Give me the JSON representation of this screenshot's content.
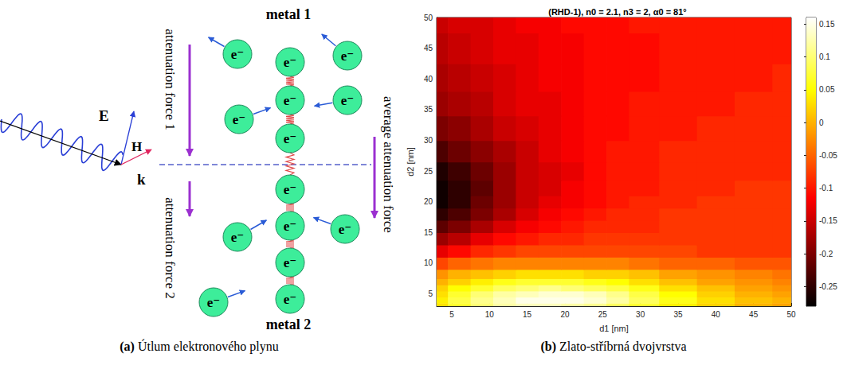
{
  "diagram": {
    "top_label": "metal 1",
    "bottom_label": "metal 2",
    "left_upper_label": "attenuation force 1",
    "left_lower_label": "attenuation force 2",
    "right_label": "average attenuation force",
    "vectors": {
      "E": "E",
      "H": "H",
      "k": "k"
    },
    "electron_label": "e⁻"
  },
  "captions": [
    {
      "label": "(a)",
      "text": "Útlum elektronového plynu"
    },
    {
      "label": "(b)",
      "text": "Zlato-stříbrná dvojvrstva"
    }
  ],
  "chart_data": {
    "type": "heatmap",
    "title": "(RHD-1), n0 = 2.1, n3 = 2, α0 = 81°",
    "x_label": "d1 [nm]",
    "y_label": "d2 [nm]",
    "xlim": [
      3,
      50
    ],
    "ylim": [
      3,
      50
    ],
    "xticks": [
      5,
      10,
      15,
      20,
      25,
      30,
      35,
      40,
      45,
      50
    ],
    "yticks": [
      5,
      10,
      15,
      20,
      25,
      30,
      35,
      40,
      45,
      50
    ],
    "grid": false,
    "x": [
      3,
      6,
      9,
      12,
      15,
      18,
      21,
      24,
      27,
      30,
      35,
      40,
      45,
      50
    ],
    "y": [
      3,
      4,
      5,
      6,
      7,
      8,
      10,
      12,
      14,
      16,
      18,
      20,
      22,
      25,
      28,
      32,
      36,
      40,
      45,
      50
    ],
    "values": [
      [
        0.03,
        0.07,
        0.1,
        0.12,
        0.13,
        0.13,
        0.12,
        0.11,
        0.09,
        0.07,
        0.04,
        0.02,
        0.0,
        -0.01
      ],
      [
        0.04,
        0.08,
        0.11,
        0.13,
        0.15,
        0.15,
        0.15,
        0.14,
        0.12,
        0.09,
        0.06,
        0.03,
        0.01,
        0.0
      ],
      [
        0.03,
        0.07,
        0.1,
        0.12,
        0.13,
        0.14,
        0.14,
        0.13,
        0.11,
        0.08,
        0.05,
        0.02,
        0.0,
        -0.01
      ],
      [
        0.02,
        0.05,
        0.07,
        0.09,
        0.1,
        0.11,
        0.1,
        0.09,
        0.08,
        0.06,
        0.03,
        0.01,
        -0.01,
        -0.02
      ],
      [
        0.0,
        0.02,
        0.04,
        0.06,
        0.07,
        0.07,
        0.07,
        0.06,
        0.05,
        0.03,
        0.01,
        -0.01,
        -0.02,
        -0.03
      ],
      [
        -0.02,
        0.0,
        0.01,
        0.02,
        0.03,
        0.03,
        0.03,
        0.02,
        0.02,
        0.01,
        -0.01,
        -0.02,
        -0.03,
        -0.04
      ],
      [
        -0.07,
        -0.05,
        -0.04,
        -0.03,
        -0.03,
        -0.03,
        -0.03,
        -0.03,
        -0.03,
        -0.04,
        -0.05,
        -0.05,
        -0.06,
        -0.06
      ],
      [
        -0.13,
        -0.11,
        -0.09,
        -0.08,
        -0.07,
        -0.07,
        -0.07,
        -0.07,
        -0.07,
        -0.07,
        -0.07,
        -0.08,
        -0.08,
        -0.08
      ],
      [
        -0.18,
        -0.16,
        -0.13,
        -0.11,
        -0.1,
        -0.09,
        -0.09,
        -0.08,
        -0.08,
        -0.08,
        -0.08,
        -0.08,
        -0.08,
        -0.08
      ],
      [
        -0.22,
        -0.2,
        -0.17,
        -0.14,
        -0.12,
        -0.11,
        -0.1,
        -0.09,
        -0.09,
        -0.09,
        -0.08,
        -0.08,
        -0.08,
        -0.08
      ],
      [
        -0.25,
        -0.23,
        -0.2,
        -0.17,
        -0.14,
        -0.12,
        -0.11,
        -0.1,
        -0.09,
        -0.09,
        -0.08,
        -0.08,
        -0.08,
        -0.08
      ],
      [
        -0.27,
        -0.25,
        -0.21,
        -0.18,
        -0.15,
        -0.13,
        -0.12,
        -0.11,
        -0.1,
        -0.09,
        -0.09,
        -0.08,
        -0.08,
        -0.08
      ],
      [
        -0.27,
        -0.25,
        -0.22,
        -0.18,
        -0.15,
        -0.14,
        -0.12,
        -0.11,
        -0.1,
        -0.1,
        -0.09,
        -0.09,
        -0.08,
        -0.08
      ],
      [
        -0.26,
        -0.24,
        -0.21,
        -0.18,
        -0.15,
        -0.14,
        -0.13,
        -0.11,
        -0.1,
        -0.1,
        -0.09,
        -0.09,
        -0.09,
        -0.09
      ],
      [
        -0.23,
        -0.21,
        -0.19,
        -0.17,
        -0.15,
        -0.13,
        -0.12,
        -0.11,
        -0.1,
        -0.1,
        -0.09,
        -0.09,
        -0.09,
        -0.09
      ],
      [
        -0.2,
        -0.19,
        -0.17,
        -0.15,
        -0.14,
        -0.13,
        -0.12,
        -0.11,
        -0.11,
        -0.1,
        -0.1,
        -0.09,
        -0.09,
        -0.09
      ],
      [
        -0.18,
        -0.17,
        -0.16,
        -0.14,
        -0.13,
        -0.13,
        -0.12,
        -0.11,
        -0.11,
        -0.1,
        -0.1,
        -0.1,
        -0.09,
        -0.09
      ],
      [
        -0.17,
        -0.16,
        -0.15,
        -0.14,
        -0.13,
        -0.12,
        -0.12,
        -0.11,
        -0.11,
        -0.11,
        -0.1,
        -0.1,
        -0.1,
        -0.09
      ],
      [
        -0.16,
        -0.15,
        -0.14,
        -0.13,
        -0.13,
        -0.12,
        -0.12,
        -0.11,
        -0.11,
        -0.11,
        -0.1,
        -0.1,
        -0.1,
        -0.1
      ],
      [
        -0.15,
        -0.14,
        -0.14,
        -0.13,
        -0.12,
        -0.12,
        -0.11,
        -0.11,
        -0.11,
        -0.1,
        -0.1,
        -0.1,
        -0.1,
        -0.1
      ]
    ],
    "colorbar": {
      "range": [
        -0.28,
        0.16
      ],
      "ticks": [
        -0.25,
        -0.2,
        -0.15,
        -0.1,
        -0.05,
        0,
        0.05,
        0.1,
        0.15
      ]
    }
  }
}
